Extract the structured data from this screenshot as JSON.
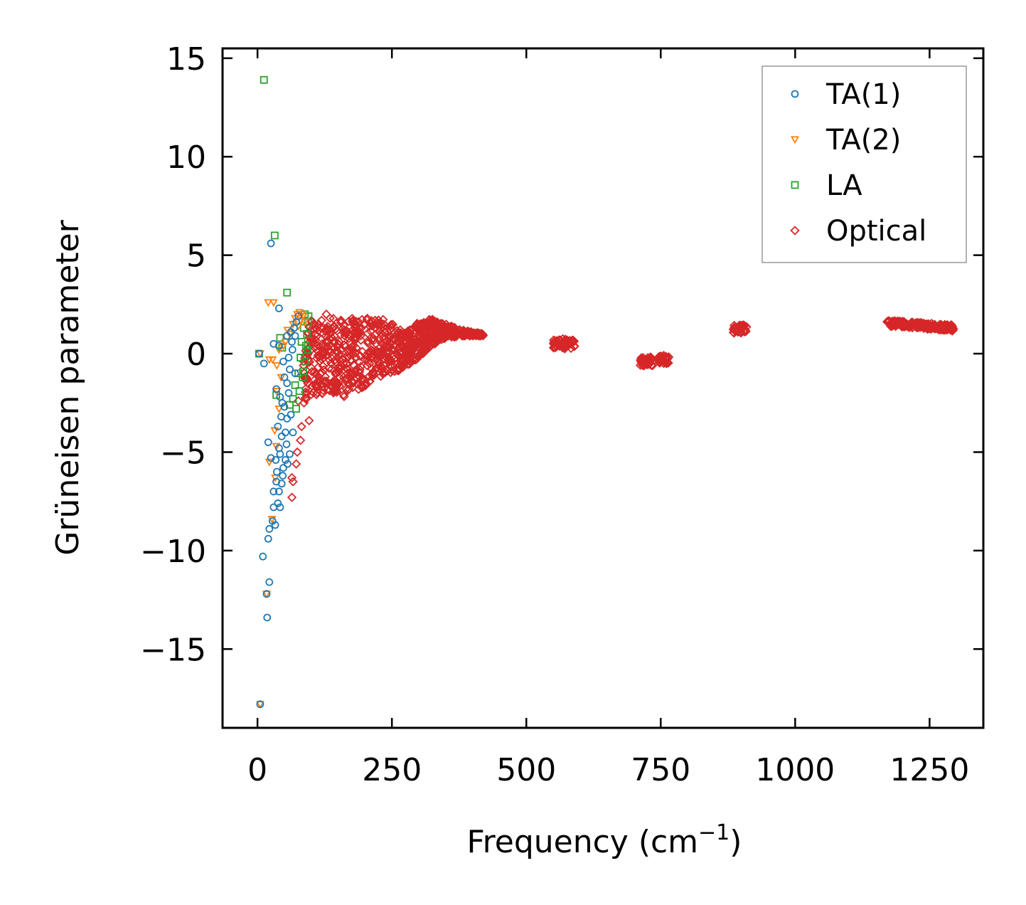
{
  "chart_data": {
    "type": "scatter",
    "xlabel": "Frequency (cm",
    "xlabel_superscript": "−1",
    "xlabel_suffix": ")",
    "ylabel": "Grüneisen parameter",
    "xlim": [
      -65,
      1350
    ],
    "ylim": [
      -19.0,
      15.5
    ],
    "xticks": [
      0,
      250,
      500,
      750,
      1000,
      1250
    ],
    "xtick_labels": [
      "0",
      "250",
      "500",
      "750",
      "1000",
      "1250"
    ],
    "yticks": [
      15,
      10,
      5,
      0,
      -5,
      -10,
      -15
    ],
    "ytick_labels": [
      "15",
      "10",
      "5",
      "0",
      "−5",
      "−10",
      "−15"
    ],
    "grid": false,
    "legend_position": "top-right",
    "series": [
      {
        "name": "TA(1)",
        "marker": "circle",
        "color": "#1f77b4",
        "points": [
          [
            5,
            -17.8
          ],
          [
            18,
            -13.4
          ],
          [
            22,
            -11.6
          ],
          [
            17,
            -12.2
          ],
          [
            10,
            -10.3
          ],
          [
            20,
            -9.4
          ],
          [
            22,
            -8.9
          ],
          [
            28,
            -8.5
          ],
          [
            33,
            -8.7
          ],
          [
            30,
            -7.8
          ],
          [
            38,
            -7.6
          ],
          [
            42,
            -7.8
          ],
          [
            40,
            -7.0
          ],
          [
            30,
            -7.0
          ],
          [
            45,
            -6.6
          ],
          [
            35,
            -6.5
          ],
          [
            25,
            -5.3
          ],
          [
            20,
            -4.5
          ],
          [
            48,
            -5.8
          ],
          [
            52,
            -5.4
          ],
          [
            40,
            -4.8
          ],
          [
            45,
            -4.2
          ],
          [
            38,
            -3.7
          ],
          [
            55,
            -3.3
          ],
          [
            50,
            -2.7
          ],
          [
            42,
            -2.2
          ],
          [
            35,
            -1.8
          ],
          [
            55,
            -1.5
          ],
          [
            60,
            -0.8
          ],
          [
            48,
            -0.4
          ],
          [
            12,
            -0.5
          ],
          [
            3,
            0.0
          ],
          [
            30,
            0.5
          ],
          [
            40,
            0.4
          ],
          [
            55,
            0.9
          ],
          [
            62,
            1.1
          ],
          [
            68,
            1.3
          ],
          [
            72,
            1.6
          ],
          [
            76,
            1.9
          ],
          [
            40,
            2.3
          ],
          [
            25,
            5.6
          ],
          [
            65,
            0.2
          ],
          [
            70,
            -1.0
          ],
          [
            58,
            -2.0
          ],
          [
            62,
            -3.1
          ],
          [
            66,
            -4.0
          ],
          [
            54,
            -4.6
          ],
          [
            60,
            -5.1
          ],
          [
            47,
            -6.2
          ],
          [
            36,
            -6.0
          ],
          [
            44,
            -3.2
          ],
          [
            64,
            0.6
          ],
          [
            58,
            -0.2
          ],
          [
            70,
            0.9
          ],
          [
            50,
            -1.2
          ],
          [
            46,
            -2.5
          ],
          [
            52,
            -4.0
          ],
          [
            56,
            -5.6
          ],
          [
            42,
            -5.1
          ],
          [
            34,
            -5.4
          ]
        ]
      },
      {
        "name": "TA(2)",
        "marker": "triangle-down",
        "color": "#ff7f0e",
        "points": [
          [
            5,
            -17.8
          ],
          [
            17,
            -12.2
          ],
          [
            27,
            -8.4
          ],
          [
            33,
            -6.3
          ],
          [
            22,
            -5.5
          ],
          [
            35,
            -4.7
          ],
          [
            32,
            -3.9
          ],
          [
            40,
            -2.8
          ],
          [
            36,
            -1.9
          ],
          [
            44,
            -1.2
          ],
          [
            28,
            -0.3
          ],
          [
            22,
            -0.3
          ],
          [
            36,
            -0.6
          ],
          [
            40,
            0.2
          ],
          [
            52,
            0.6
          ],
          [
            60,
            1.0
          ],
          [
            66,
            1.5
          ],
          [
            70,
            1.8
          ],
          [
            74,
            2.0
          ],
          [
            78,
            2.1
          ],
          [
            82,
            2.0
          ],
          [
            85,
            1.9
          ],
          [
            20,
            2.6
          ],
          [
            30,
            2.6
          ],
          [
            5,
            0.0
          ],
          [
            48,
            0.4
          ],
          [
            56,
            1.2
          ],
          [
            80,
            1.7
          ],
          [
            88,
            1.6
          ],
          [
            76,
            1.4
          ]
        ]
      },
      {
        "name": "LA",
        "marker": "square",
        "color": "#2ca02c",
        "points": [
          [
            12,
            13.9
          ],
          [
            32,
            6.0
          ],
          [
            55,
            3.1
          ],
          [
            42,
            0.8
          ],
          [
            35,
            -2.1
          ],
          [
            60,
            -2.6
          ],
          [
            72,
            -2.8
          ],
          [
            78,
            -1.9
          ],
          [
            84,
            -1.2
          ],
          [
            88,
            -0.4
          ],
          [
            90,
            0.4
          ],
          [
            92,
            1.0
          ],
          [
            94,
            1.6
          ],
          [
            95,
            1.9
          ],
          [
            86,
            1.3
          ],
          [
            82,
            0.6
          ],
          [
            80,
            -0.2
          ],
          [
            76,
            -1.0
          ],
          [
            70,
            -1.6
          ],
          [
            66,
            -2.3
          ],
          [
            3,
            0.0
          ],
          [
            46,
            0.3
          ],
          [
            88,
            2.0
          ],
          [
            93,
            0.2
          ],
          [
            85,
            -0.9
          ]
        ]
      }
    ],
    "optical": {
      "name": "Optical",
      "marker": "diamond",
      "color": "#d62728",
      "scattered_points": [
        [
          128,
          2.0
        ],
        [
          135,
          1.8
        ],
        [
          64,
          -6.3
        ],
        [
          66,
          -6.5
        ],
        [
          64,
          -7.3
        ],
        [
          72,
          -5.6
        ],
        [
          74,
          -5.0
        ],
        [
          80,
          -4.4
        ],
        [
          82,
          -3.7
        ],
        [
          76,
          -2.4
        ],
        [
          96,
          -3.4
        ],
        [
          145,
          -1.8
        ],
        [
          170,
          -1.8
        ],
        [
          190,
          -1.2
        ],
        [
          215,
          -1.0
        ],
        [
          255,
          -0.9
        ],
        [
          230,
          -0.7
        ],
        [
          270,
          -0.4
        ],
        [
          120,
          -0.3
        ],
        [
          100,
          0.2
        ],
        [
          300,
          0.9
        ],
        [
          320,
          1.6
        ]
      ],
      "envelope": {
        "x": [
          85,
          100,
          130,
          160,
          190,
          220,
          240,
          260,
          280,
          300,
          320,
          340,
          360,
          380,
          400,
          420
        ],
        "upper": [
          1.6,
          1.7,
          1.8,
          1.8,
          1.8,
          1.9,
          1.8,
          1.3,
          1.2,
          1.6,
          1.8,
          1.6,
          1.4,
          1.2,
          1.1,
          1.0
        ],
        "lower": [
          -2.6,
          -2.3,
          -1.9,
          -2.2,
          -1.8,
          -1.4,
          -1.0,
          -0.9,
          -0.6,
          -0.2,
          0.3,
          0.7,
          0.8,
          0.9,
          0.9,
          0.9
        ]
      },
      "clusters": [
        {
          "x_from": 550,
          "x_to": 590,
          "y_center": 0.5,
          "spread": 0.25
        },
        {
          "x_from": 712,
          "x_to": 735,
          "y_center": -0.4,
          "spread": 0.25
        },
        {
          "x_from": 745,
          "x_to": 765,
          "y_center": -0.3,
          "spread": 0.2
        },
        {
          "x_from": 885,
          "x_to": 910,
          "y_center": 1.25,
          "spread": 0.2
        },
        {
          "x_from": 1170,
          "x_to": 1295,
          "y_center_start": 1.55,
          "y_center_end": 1.3,
          "spread": 0.15
        }
      ]
    }
  }
}
